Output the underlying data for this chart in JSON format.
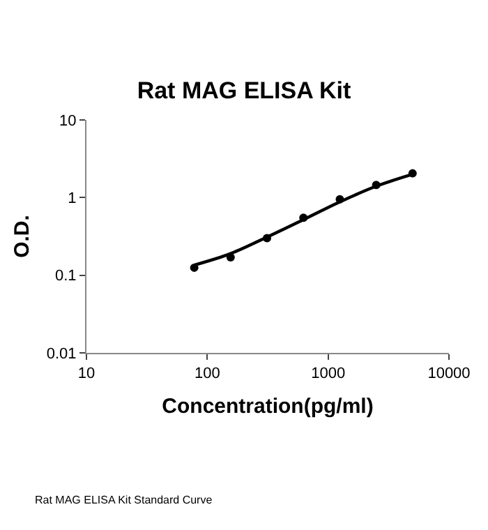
{
  "chart_data": {
    "type": "scatter",
    "title": "Rat MAG ELISA Kit",
    "xlabel": "Concentration(pg/ml)",
    "ylabel": "O.D.",
    "log": "xy",
    "grid": false,
    "xlim": [
      10,
      10000
    ],
    "xticks": [
      10,
      100,
      1000,
      10000
    ],
    "ylim": [
      0.01,
      10
    ],
    "yticks": [
      0.01,
      0.1,
      1,
      10
    ],
    "series": [
      {
        "marker": "circle",
        "color": "#000000",
        "x": [
          78,
          156,
          312,
          625,
          1250,
          2500,
          5000
        ],
        "values": [
          0.125,
          0.17,
          0.3,
          0.55,
          0.95,
          1.45,
          2.05
        ]
      },
      {
        "type": "line",
        "marker": "none",
        "line_style": "solid",
        "color": "#000000",
        "x": [
          78,
          156,
          312,
          625,
          1250,
          2500,
          5000
        ],
        "values": [
          0.135,
          0.19,
          0.31,
          0.52,
          0.88,
          1.4,
          2.0
        ]
      }
    ],
    "annotations": [
      "Rat MAG ELISA Kit Standard Curve"
    ]
  }
}
